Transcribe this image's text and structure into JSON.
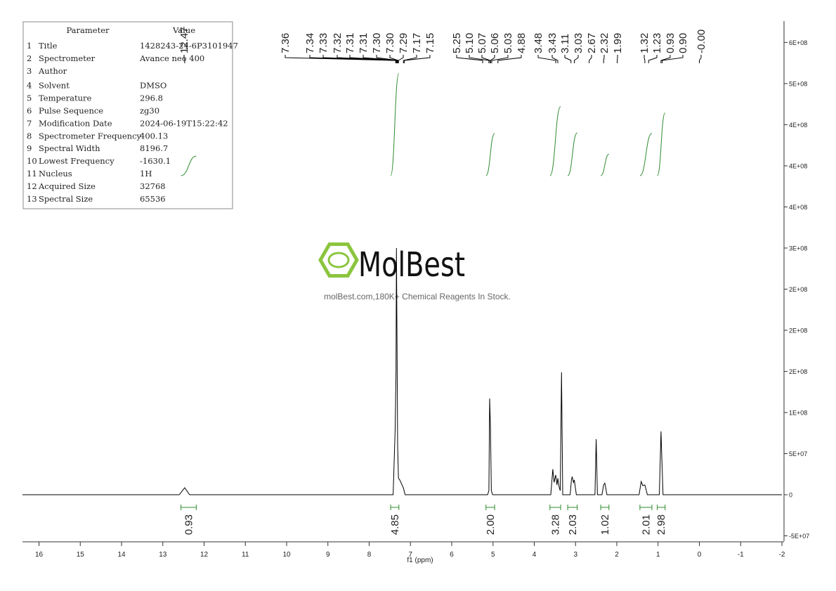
{
  "parameters": {
    "header": [
      "Parameter",
      "Value"
    ],
    "rows": [
      [
        1,
        "Title",
        "1428243-24-6P3101947"
      ],
      [
        2,
        "Spectrometer",
        "Avance neo 400"
      ],
      [
        3,
        "Author"
      ],
      [
        4,
        "Solvent",
        "DMSO"
      ],
      [
        5,
        "Temperature",
        "296.8"
      ],
      [
        6,
        "Pulse Sequence",
        "zg30"
      ],
      [
        7,
        "Modification Date",
        "2024-06-19T15:22:42"
      ],
      [
        8,
        "Spectrometer Frequency",
        "400.13"
      ],
      [
        9,
        "Spectral Width",
        "8196.7"
      ],
      [
        10,
        "Lowest Frequency",
        "-1630.1"
      ],
      [
        11,
        "Nucleus",
        "1H"
      ],
      [
        12,
        "Acquired Size",
        "32768"
      ],
      [
        13,
        "Spectral Size",
        "65536"
      ]
    ]
  },
  "watermark": {
    "brand": "MolBest",
    "tagline": "molBest.com,180K+ Chemical Reagents In Stock."
  },
  "chart_data": {
    "type": "nmr",
    "xlabel": "f1 (ppm)",
    "color": "#000000",
    "integral_color": "#2e8b2e",
    "xlim": [
      16.4,
      -2
    ],
    "xticks": [
      16,
      15,
      14,
      13,
      12,
      11,
      10,
      9,
      8,
      7,
      6,
      5,
      4,
      3,
      2,
      1,
      0,
      -1,
      -2
    ],
    "ylim": [
      -56400000,
      576000000
    ],
    "yticks": [
      {
        "value": -50000000,
        "label": "-5E+07"
      },
      0,
      {
        "value": 50000000,
        "label": "5E+07"
      },
      {
        "value": 100000000,
        "label": "1E+08"
      },
      {
        "value": 150000000,
        "label": "2E+08"
      },
      {
        "value": 200000000,
        "label": "2E+08"
      },
      {
        "value": 250000000,
        "label": "2E+08"
      },
      {
        "value": 300000000,
        "label": "3E+08"
      },
      {
        "value": 350000000,
        "label": "4E+08"
      },
      {
        "value": 400000000,
        "label": "4E+08"
      },
      {
        "value": 450000000,
        "label": "4E+08"
      },
      {
        "value": 500000000,
        "label": "5E+08"
      },
      {
        "value": 550000000,
        "label": "6E+08"
      }
    ],
    "x": [
      16.4,
      12.6,
      12.47,
      12.35,
      7.42,
      7.37,
      7.35,
      7.34,
      7.33,
      7.31,
      7.29,
      7.26,
      7.17,
      7.13,
      5.13,
      5.1,
      5.08,
      5.06,
      5.04,
      5.01,
      3.6,
      3.55,
      3.52,
      3.48,
      3.45,
      3.43,
      3.4,
      3.37,
      3.34,
      3.31,
      3.13,
      3.1,
      3.08,
      3.05,
      3.03,
      2.98,
      2.53,
      2.5,
      2.47,
      2.36,
      2.32,
      2.29,
      2.24,
      1.46,
      1.41,
      1.37,
      1.32,
      1.26,
      0.97,
      0.93,
      0.91,
      0.88,
      0,
      -2
    ],
    "values": [
      0,
      0,
      8500000,
      0,
      0,
      80000000,
      150000000,
      300000000,
      220000000,
      60000000,
      20000000,
      18000000,
      8000000,
      0,
      0,
      5000000,
      117000000,
      80000000,
      5000000,
      0,
      0,
      31000000,
      15000000,
      24000000,
      12000000,
      20000000,
      10000000,
      5000000,
      149000000,
      0,
      0,
      18000000,
      22000000,
      15000000,
      18000000,
      0,
      0,
      67500000,
      0,
      0,
      12000000,
      14000000,
      0,
      0,
      16000000,
      11000000,
      12000000,
      0,
      0,
      77000000,
      46000000,
      0,
      0,
      0
    ],
    "peak_labels": [
      12.47,
      7.36,
      7.34,
      7.33,
      7.32,
      7.31,
      7.31,
      {
        "value": 7.3,
        "label": "7.30"
      },
      {
        "value": 7.3,
        "label": "7.30"
      },
      7.29,
      7.17,
      7.15,
      5.25,
      {
        "value": 5.1,
        "label": "5.10"
      },
      5.07,
      5.06,
      5.03,
      4.88,
      3.48,
      3.43,
      3.11,
      3.03,
      2.67,
      2.32,
      1.99,
      1.32,
      1.23,
      0.93,
      {
        "value": 0.9,
        "label": "0.90"
      },
      {
        "value": 0,
        "label": "-0.00"
      }
    ],
    "integrals": [
      {
        "from": 12.56,
        "to": 12.19,
        "value": 0.93
      },
      {
        "from": 7.48,
        "to": 7.28,
        "value": 4.85
      },
      {
        "from": 5.17,
        "to": 4.96,
        "value": {
          "value": 2,
          "label": "2.00"
        }
      },
      {
        "from": 3.62,
        "to": 3.36,
        "value": 3.28
      },
      {
        "from": 3.19,
        "to": 2.96,
        "value": 2.03
      },
      {
        "from": 2.39,
        "to": 2.19,
        "value": 1.02
      },
      {
        "from": 1.44,
        "to": 1.15,
        "value": 2.01
      },
      {
        "from": 1.02,
        "to": 0.83,
        "value": 2.98
      }
    ]
  }
}
